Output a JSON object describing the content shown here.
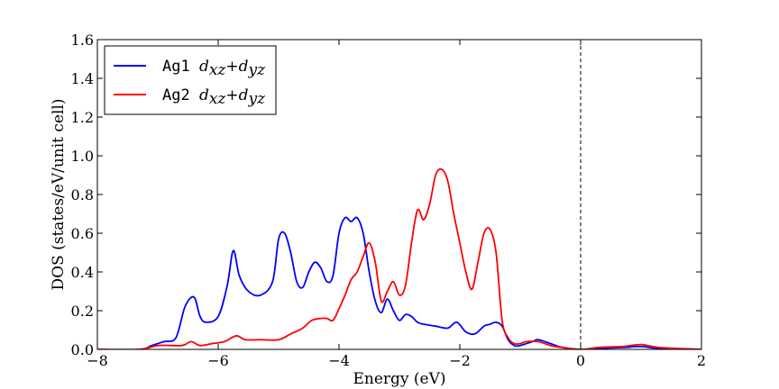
{
  "chart_data": {
    "type": "line",
    "title": "",
    "xlabel": "Energy (eV)",
    "ylabel": "DOS (states/eV/unit cell)",
    "xlim": [
      -8,
      2
    ],
    "ylim": [
      0,
      1.6
    ],
    "xticks": [
      -8,
      -6,
      -4,
      -2,
      0,
      2
    ],
    "xtick_labels": [
      "−8",
      "−6",
      "−4",
      "−2",
      "0",
      "2"
    ],
    "yticks": [
      0,
      0.2,
      0.4,
      0.6,
      0.8,
      1.0,
      1.2,
      1.4,
      1.6
    ],
    "ytick_labels": [
      "0.0",
      "0.2",
      "0.4",
      "0.6",
      "0.8",
      "1.0",
      "1.2",
      "1.4",
      "1.6"
    ],
    "grid": false,
    "legend_position": "top-left",
    "vline": {
      "x": 0,
      "style": "dashed",
      "color": "#000000"
    },
    "series": [
      {
        "name": "Ag1",
        "name_math": "dxz+dyz",
        "color": "#0000ff",
        "x": [
          -8.0,
          -7.3,
          -7.1,
          -6.9,
          -6.7,
          -6.55,
          -6.4,
          -6.3,
          -6.2,
          -6.0,
          -5.85,
          -5.75,
          -5.65,
          -5.5,
          -5.3,
          -5.1,
          -5.0,
          -4.9,
          -4.8,
          -4.7,
          -4.6,
          -4.5,
          -4.4,
          -4.3,
          -4.2,
          -4.1,
          -4.0,
          -3.9,
          -3.8,
          -3.7,
          -3.6,
          -3.5,
          -3.4,
          -3.3,
          -3.2,
          -3.1,
          -3.0,
          -2.9,
          -2.8,
          -2.7,
          -2.6,
          -2.4,
          -2.2,
          -2.05,
          -1.9,
          -1.75,
          -1.6,
          -1.5,
          -1.4,
          -1.3,
          -1.2,
          -1.1,
          -1.0,
          -0.8,
          -0.7,
          -0.5,
          -0.3,
          0.0,
          0.3,
          0.7,
          1.0,
          1.3,
          2.0
        ],
        "y": [
          0.0,
          0.0,
          0.02,
          0.04,
          0.06,
          0.22,
          0.27,
          0.17,
          0.14,
          0.17,
          0.33,
          0.51,
          0.38,
          0.3,
          0.28,
          0.35,
          0.57,
          0.6,
          0.5,
          0.35,
          0.32,
          0.4,
          0.45,
          0.42,
          0.35,
          0.38,
          0.6,
          0.68,
          0.66,
          0.68,
          0.6,
          0.4,
          0.25,
          0.19,
          0.26,
          0.2,
          0.15,
          0.18,
          0.17,
          0.14,
          0.13,
          0.12,
          0.11,
          0.14,
          0.09,
          0.08,
          0.12,
          0.13,
          0.14,
          0.12,
          0.05,
          0.02,
          0.02,
          0.04,
          0.05,
          0.03,
          0.01,
          0.0,
          0.005,
          0.01,
          0.015,
          0.005,
          0.0
        ]
      },
      {
        "name": "Ag2",
        "name_math": "dxz+dyz",
        "color": "#ff0000",
        "x": [
          -8.0,
          -7.3,
          -7.0,
          -6.6,
          -6.45,
          -6.3,
          -6.1,
          -5.9,
          -5.7,
          -5.55,
          -5.3,
          -5.0,
          -4.8,
          -4.6,
          -4.45,
          -4.3,
          -4.2,
          -4.1,
          -4.0,
          -3.9,
          -3.8,
          -3.7,
          -3.6,
          -3.5,
          -3.4,
          -3.3,
          -3.2,
          -3.1,
          -3.0,
          -2.9,
          -2.8,
          -2.7,
          -2.6,
          -2.5,
          -2.4,
          -2.3,
          -2.2,
          -2.1,
          -2.0,
          -1.9,
          -1.8,
          -1.7,
          -1.6,
          -1.5,
          -1.4,
          -1.3,
          -1.2,
          -1.1,
          -1.0,
          -0.9,
          -0.7,
          -0.5,
          -0.3,
          0.0,
          0.3,
          0.7,
          1.0,
          1.3,
          2.0
        ],
        "y": [
          0.0,
          0.0,
          0.02,
          0.02,
          0.04,
          0.02,
          0.03,
          0.04,
          0.07,
          0.05,
          0.05,
          0.05,
          0.08,
          0.11,
          0.15,
          0.16,
          0.16,
          0.15,
          0.21,
          0.28,
          0.36,
          0.4,
          0.48,
          0.55,
          0.45,
          0.25,
          0.3,
          0.35,
          0.28,
          0.33,
          0.55,
          0.72,
          0.67,
          0.75,
          0.9,
          0.93,
          0.87,
          0.7,
          0.55,
          0.4,
          0.31,
          0.45,
          0.6,
          0.62,
          0.5,
          0.15,
          0.06,
          0.03,
          0.03,
          0.04,
          0.04,
          0.02,
          0.01,
          0.0,
          0.01,
          0.015,
          0.025,
          0.01,
          0.0
        ]
      }
    ]
  }
}
